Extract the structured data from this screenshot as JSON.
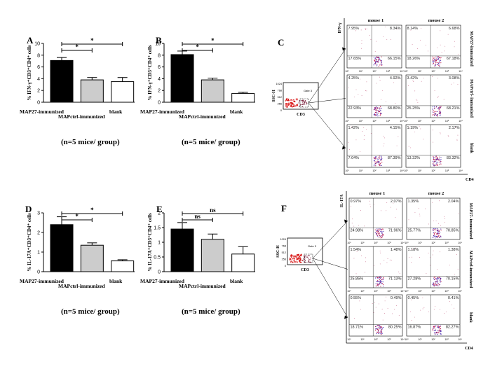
{
  "panels": {
    "A": "A",
    "B": "B",
    "C": "C",
    "D": "D",
    "E": "E",
    "F": "F"
  },
  "n_label": "(n=5 mice/ group)",
  "chart_data": [
    {
      "panel": "A",
      "type": "bar",
      "categories": [
        "MAP27-immunized",
        "MAPctrl-immunized",
        "blank"
      ],
      "values": [
        7.1,
        3.8,
        3.5
      ],
      "errors": [
        0.5,
        0.4,
        0.7
      ],
      "colors": [
        "#000000",
        "#cccccc",
        "#ffffff"
      ],
      "ylabel": "% IFN-γ⁺CD3⁺CD4⁺ cells",
      "ylim": [
        0,
        10
      ],
      "yticks": [
        0,
        2,
        4,
        6,
        8,
        10
      ],
      "significance": [
        {
          "from": 0,
          "to": 1,
          "label": "*"
        },
        {
          "from": 0,
          "to": 2,
          "label": "*"
        }
      ]
    },
    {
      "panel": "B",
      "type": "bar",
      "categories": [
        "MAP27-immunized",
        "MAPctrl-immunized",
        "blank"
      ],
      "values": [
        8.1,
        3.8,
        1.5
      ],
      "errors": [
        0.6,
        0.3,
        0.2
      ],
      "colors": [
        "#000000",
        "#cccccc",
        "#ffffff"
      ],
      "ylabel": "% IFN-γ⁺CD3⁺CD4⁺ cells",
      "ylim": [
        0,
        10
      ],
      "yticks": [
        0,
        2,
        4,
        6,
        8,
        10
      ],
      "significance": [
        {
          "from": 0,
          "to": 1,
          "label": "*"
        },
        {
          "from": 0,
          "to": 2,
          "label": "*"
        }
      ]
    },
    {
      "panel": "D",
      "type": "bar",
      "categories": [
        "MAP27-immunized",
        "MAPctrl-immunized",
        "blank"
      ],
      "values": [
        2.4,
        1.35,
        0.55
      ],
      "errors": [
        0.4,
        0.12,
        0.06
      ],
      "colors": [
        "#000000",
        "#cccccc",
        "#ffffff"
      ],
      "ylabel": "% IL-17A⁺CD3⁺CD4⁺ cells",
      "ylim": [
        0,
        3
      ],
      "yticks": [
        0,
        1,
        2,
        3
      ],
      "significance": [
        {
          "from": 0,
          "to": 1,
          "label": "*"
        },
        {
          "from": 0,
          "to": 2,
          "label": "*"
        }
      ]
    },
    {
      "panel": "E",
      "type": "bar",
      "categories": [
        "MAP27-immunized",
        "MAPctrl-immunized",
        "blank"
      ],
      "values": [
        1.45,
        1.1,
        0.6
      ],
      "errors": [
        0.22,
        0.18,
        0.25
      ],
      "colors": [
        "#000000",
        "#cccccc",
        "#ffffff"
      ],
      "ylabel": "% IL-17A⁺CD3⁺CD4⁺ cells",
      "ylim": [
        0,
        2
      ],
      "yticks": [
        0.0,
        0.5,
        1.0,
        1.5,
        2.0
      ],
      "significance": [
        {
          "from": 0,
          "to": 1,
          "label": "ns"
        },
        {
          "from": 0,
          "to": 2,
          "label": "ns"
        }
      ]
    }
  ],
  "flow_panels": [
    {
      "panel": "C",
      "y_marker": "IFN-γ",
      "x_marker": "CD4",
      "gate_ylabel": "SSC-H",
      "gate_xlabel": "CD3",
      "gate_name": "Gate 3",
      "gate_ticks": [
        "1024",
        "768",
        "512",
        "256",
        "0"
      ],
      "columns": [
        "mouse 1",
        "mouse 2"
      ],
      "rows": [
        "MAP27-immunized",
        "MAPctrl- immunized",
        "blank"
      ],
      "quadrants": [
        [
          [
            "7.95%",
            "8.34%",
            "17.65%",
            "66.15%"
          ],
          [
            "8.14%",
            "6.68%",
            "18.26%",
            "67.18%"
          ]
        ],
        [
          [
            "4.25%",
            "4.92%",
            "22.93%",
            "68.80%"
          ],
          [
            "3.42%",
            "3.08%",
            "25.25%",
            "68.21%"
          ]
        ],
        [
          [
            "1.42%",
            "4.15%",
            "7.04%",
            "87.39%"
          ],
          [
            "1.19%",
            "2.17%",
            "13.32%",
            "83.32%"
          ]
        ]
      ]
    },
    {
      "panel": "F",
      "y_marker": "IL-17A",
      "x_marker": "CD4",
      "gate_ylabel": "SSC-H",
      "gate_xlabel": "CD3",
      "gate_name": "Gate 3",
      "gate_ticks": [
        "1024",
        "768",
        "512",
        "256",
        "0"
      ],
      "columns": [
        "mouse 1",
        "mouse 2"
      ],
      "rows": [
        "MAP27- immunized",
        "MAPctrl-immunized",
        "blank"
      ],
      "quadrants": [
        [
          [
            "0.97%",
            "2.07%",
            "24.98%",
            "71.96%"
          ],
          [
            "1.35%",
            "2.04%",
            "25.77%",
            "70.85%"
          ]
        ],
        [
          [
            "1.54%",
            "1.48%",
            "25.85%",
            "71.13%"
          ],
          [
            "1.18%",
            "1.38%",
            "27.28%",
            "70.15%"
          ]
        ],
        [
          [
            "0.55%",
            "0.49%",
            "18.71%",
            "80.25%"
          ],
          [
            "0.45%",
            "0.41%",
            "16.87%",
            "82.27%"
          ]
        ]
      ]
    }
  ],
  "axis_ticks_log": [
    "10⁰",
    "10¹",
    "10²",
    "10³",
    "10⁴"
  ]
}
